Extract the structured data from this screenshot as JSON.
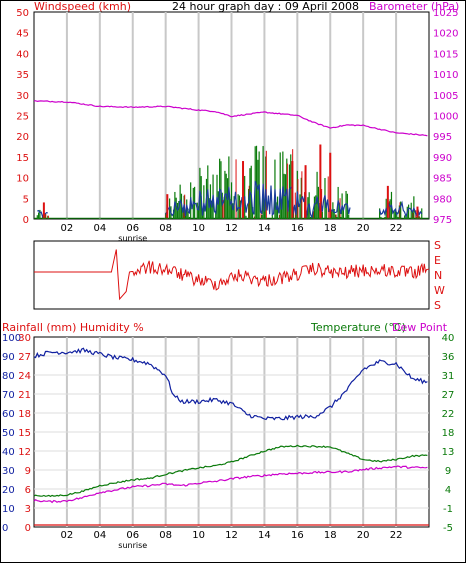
{
  "header": {
    "left_title": "Windspeed (kmh)",
    "center_title": "24 hour graph day : 09 April 2008",
    "right_title": "Barometer (hPa)"
  },
  "panel3": {
    "left_title": "Rainfall (mm)  Humidity %",
    "right_title": "Temperature (°C)",
    "right_title2": "Dew Point"
  },
  "x_labels": [
    "02",
    "04",
    "06",
    "08",
    "10",
    "12",
    "14",
    "16",
    "18",
    "20",
    "22"
  ],
  "sunrise_label": "sunrise",
  "colors": {
    "wind_avg": "#1a3c9c",
    "wind_gust": "#dd1111",
    "wind_bar_green": "#0a7a0a",
    "barometer": "#cc00cc",
    "direction": "#dd1111",
    "humidity": "#1020a0",
    "temperature": "#0a7a0a",
    "dewpoint": "#cc00cc",
    "rain": "#dd1111"
  },
  "chart_data": [
    {
      "type": "line",
      "panel": "wind-barometer",
      "x_unit": "hour",
      "xlim": [
        0,
        24
      ],
      "y_left_ticks": [
        "0",
        "5",
        "10",
        "15",
        "20",
        "25",
        "30",
        "35",
        "40",
        "45",
        "50"
      ],
      "y_right_ticks": [
        "975",
        "980",
        "985",
        "990",
        "995",
        "1000",
        "1005",
        "1010",
        "1015",
        "1020",
        "1025"
      ],
      "ylim_left": [
        0,
        50
      ],
      "ylim_right": [
        975,
        1025
      ],
      "series": [
        {
          "name": "Barometer (hPa)",
          "axis": "right",
          "x": [
            0,
            2,
            4,
            6,
            8,
            10,
            11,
            12,
            14,
            16,
            17,
            18,
            19,
            20,
            21,
            22,
            23,
            24
          ],
          "y": [
            1003.5,
            1003.3,
            1002.2,
            1002.0,
            1002.2,
            1001.3,
            1001.0,
            999.8,
            1000.8,
            1000.0,
            998.3,
            997.0,
            997.7,
            997.6,
            996.7,
            995.8,
            995.5,
            995.1
          ]
        }
      ],
      "wind_bursts": [
        {
          "start": 0.2,
          "end": 0.9,
          "max": 4
        },
        {
          "start": 8.0,
          "end": 19.2,
          "max": 18
        },
        {
          "start": 21.0,
          "end": 23.6,
          "max": 8
        }
      ],
      "peak_markers": [
        {
          "x": 0.6,
          "y": 4
        },
        {
          "x": 8.1,
          "y": 6
        },
        {
          "x": 12.7,
          "y": 14
        },
        {
          "x": 15.7,
          "y": 14
        },
        {
          "x": 16.5,
          "y": 13
        },
        {
          "x": 17.4,
          "y": 18
        },
        {
          "x": 18.0,
          "y": 16
        },
        {
          "x": 21.5,
          "y": 8
        },
        {
          "x": 23.3,
          "y": 3
        }
      ]
    },
    {
      "type": "line",
      "panel": "wind-direction",
      "x_unit": "hour",
      "xlim": [
        0,
        24
      ],
      "y_labels": [
        "S",
        "E",
        "N",
        "W",
        "S"
      ],
      "points": [
        {
          "x": 0,
          "y": 1.8
        },
        {
          "x": 4.7,
          "y": 1.8
        },
        {
          "x": 5.0,
          "y": 0.3
        },
        {
          "x": 5.2,
          "y": 3.6
        },
        {
          "x": 5.6,
          "y": 3.1
        },
        {
          "x": 5.8,
          "y": 1.8
        },
        {
          "x": 7.0,
          "y": 1.5
        },
        {
          "x": 8.0,
          "y": 1.6
        },
        {
          "x": 9.5,
          "y": 2.2
        },
        {
          "x": 11.0,
          "y": 2.6
        },
        {
          "x": 12.5,
          "y": 2.0
        },
        {
          "x": 14.0,
          "y": 2.4
        },
        {
          "x": 15.5,
          "y": 2.1
        },
        {
          "x": 17.0,
          "y": 1.6
        },
        {
          "x": 18.5,
          "y": 1.9
        },
        {
          "x": 20.0,
          "y": 1.7
        },
        {
          "x": 21.5,
          "y": 1.7
        },
        {
          "x": 23.0,
          "y": 1.9
        },
        {
          "x": 24.0,
          "y": 1.6
        }
      ]
    },
    {
      "type": "line",
      "panel": "rain-humidity-temperature",
      "x_unit": "hour",
      "xlim": [
        0,
        24
      ],
      "y_left_rain_ticks": [
        "0",
        "3",
        "6",
        "9",
        "12",
        "15",
        "18",
        "21",
        "24",
        "27",
        "30"
      ],
      "y_left_humidity_ticks": [
        "0",
        "10",
        "20",
        "30",
        "40",
        "50",
        "60",
        "70",
        "80",
        "90",
        "100"
      ],
      "y_right_ticks": [
        "-5",
        "-1",
        "4",
        "9",
        "13",
        "18",
        "22",
        "27",
        "31",
        "36",
        "40"
      ],
      "ylim_humidity": [
        0,
        100
      ],
      "ylim_temperature": [
        -5,
        40
      ],
      "series": [
        {
          "name": "Humidity %",
          "axis": "humidity",
          "x": [
            0,
            1,
            2,
            3,
            4,
            5,
            6,
            7,
            8,
            8.5,
            9,
            10,
            11,
            12,
            13,
            14,
            15,
            16,
            17,
            18,
            19,
            20,
            21,
            22,
            23,
            24
          ],
          "y": [
            90,
            92,
            92,
            93,
            91,
            89,
            88,
            86,
            80,
            69,
            66,
            66,
            67,
            65,
            59,
            57,
            57,
            58,
            58,
            63,
            72,
            83,
            87,
            86,
            78,
            76
          ]
        },
        {
          "name": "Temperature (°C)",
          "axis": "temperature",
          "x": [
            0,
            1,
            2,
            3,
            4,
            5,
            6,
            7,
            8,
            9,
            10,
            11,
            12,
            13,
            14,
            15,
            16,
            17,
            18,
            19,
            20,
            21,
            22,
            23,
            24
          ],
          "y": [
            2.5,
            2.3,
            2.6,
            3.5,
            4.8,
            5.5,
            6.2,
            6.5,
            7.5,
            8.3,
            9.0,
            9.5,
            10.4,
            11.7,
            13.0,
            14.0,
            14.2,
            14.1,
            14.0,
            12.5,
            11.0,
            10.5,
            11.0,
            11.8,
            12.0
          ]
        },
        {
          "name": "Dew Point",
          "axis": "temperature",
          "x": [
            0,
            1,
            2,
            3,
            4,
            5,
            6,
            7,
            8,
            9,
            10,
            11,
            12,
            13,
            14,
            15,
            16,
            17,
            18,
            19,
            20,
            21,
            22,
            23,
            24
          ],
          "y": [
            1.3,
            1.0,
            1.2,
            2.0,
            3.2,
            3.8,
            4.5,
            4.8,
            5.2,
            4.8,
            5.4,
            5.8,
            6.4,
            6.9,
            7.2,
            7.6,
            7.7,
            7.9,
            8.0,
            8.1,
            8.6,
            9.0,
            9.3,
            9.1,
            9.0
          ]
        },
        {
          "name": "Rainfall (mm)",
          "axis": "rain",
          "x": [
            0,
            24
          ],
          "y": [
            0,
            0
          ]
        }
      ]
    }
  ]
}
